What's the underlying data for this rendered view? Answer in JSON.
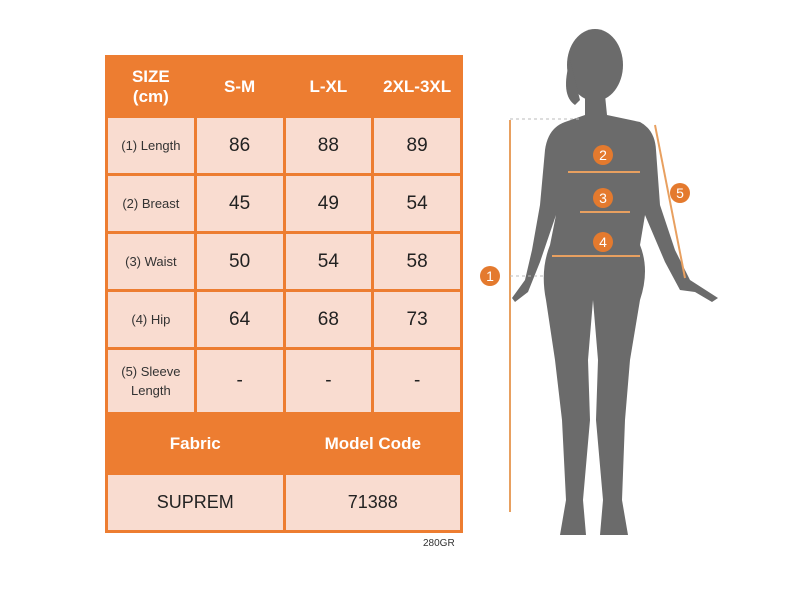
{
  "table": {
    "header": [
      "SIZE\n(cm)",
      "S-M",
      "L-XL",
      "2XL-3XL"
    ],
    "header_size": "SIZE",
    "header_unit": "(cm)",
    "rows": [
      {
        "label": "(1) Length",
        "values": [
          "86",
          "88",
          "89"
        ]
      },
      {
        "label": "(2) Breast",
        "values": [
          "45",
          "49",
          "54"
        ]
      },
      {
        "label": "(3) Waist",
        "values": [
          "50",
          "54",
          "58"
        ]
      },
      {
        "label": "(4) Hip",
        "values": [
          "64",
          "68",
          "73"
        ]
      },
      {
        "label": "(5) Sleeve Length",
        "values": [
          "-",
          "-",
          "-"
        ]
      }
    ],
    "fabric_label": "Fabric",
    "model_code_label": "Model Code",
    "fabric": "SUPREM",
    "model_code": "71388"
  },
  "weight": "280GR",
  "figure": {
    "markers": [
      "1",
      "2",
      "3",
      "4",
      "5"
    ]
  },
  "colors": {
    "accent": "#ED7D31",
    "cell": "#F9DCD0",
    "silhouette": "#6b6b6b"
  }
}
